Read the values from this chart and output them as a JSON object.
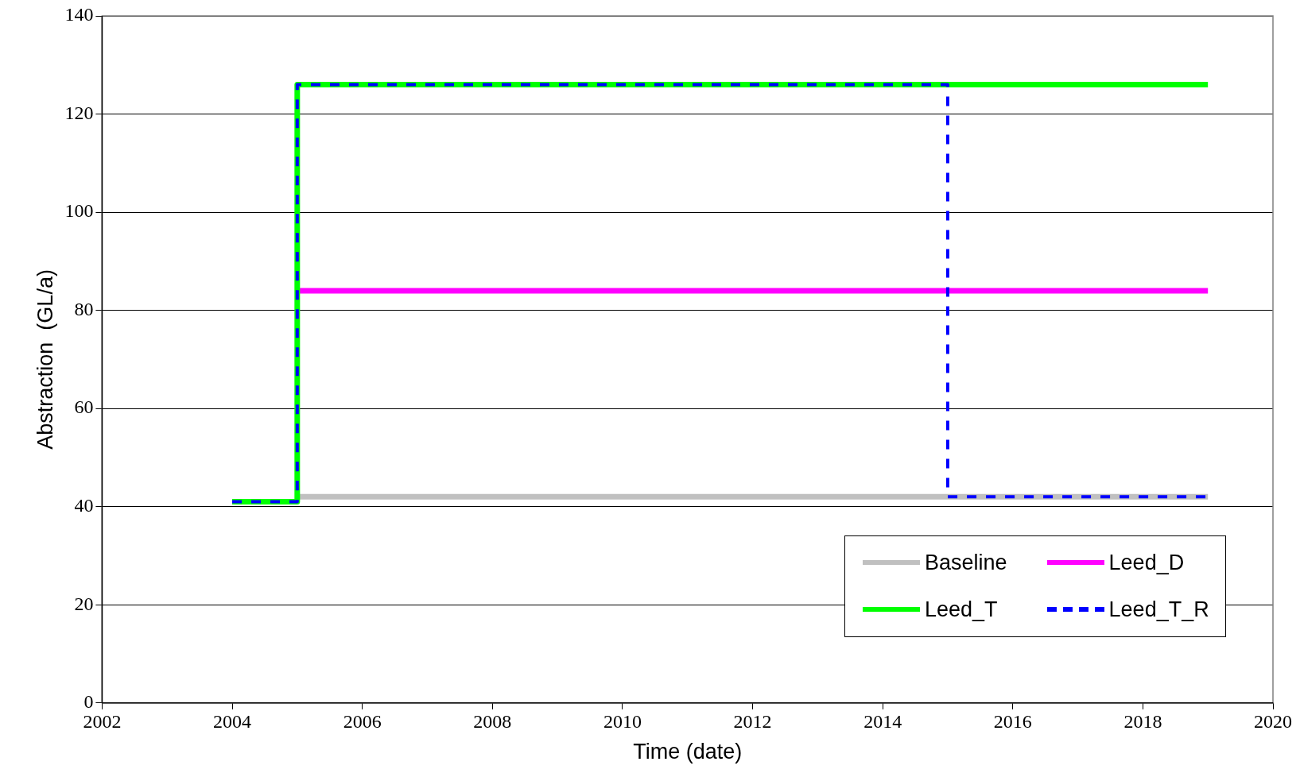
{
  "chart_data": {
    "type": "line",
    "xlabel": "Time (date)",
    "ylabel": "Abstraction  (GL/a)",
    "xlim": [
      2002,
      2020
    ],
    "xticks": [
      2002,
      2004,
      2006,
      2008,
      2010,
      2012,
      2014,
      2016,
      2018,
      2020
    ],
    "ylim": [
      0,
      140
    ],
    "yticks": [
      0,
      20,
      40,
      60,
      80,
      100,
      120,
      140
    ],
    "grid": "y",
    "legend": "bottom right",
    "marker": "none",
    "series": [
      {
        "name": "Baseline",
        "color": "#c0c0c0",
        "x": [
          2005,
          2019
        ],
        "values": [
          42,
          42
        ],
        "line_style": "solid"
      },
      {
        "name": "Leed_D",
        "color": "#ff00ff",
        "x": [
          2005,
          2019
        ],
        "values": [
          84,
          84
        ],
        "line_style": "solid"
      },
      {
        "name": "Leed_T",
        "color": "#00ff00",
        "x": [
          2004,
          2005,
          2005,
          2019
        ],
        "values": [
          41,
          41,
          126,
          126
        ],
        "line_style": "solid"
      },
      {
        "name": "Leed_T_R",
        "color": "#0000ff",
        "x": [
          2004,
          2005,
          2005,
          2015,
          2015,
          2019
        ],
        "values": [
          41,
          41,
          126,
          126,
          42,
          42
        ],
        "line_style": "dashed"
      }
    ]
  }
}
